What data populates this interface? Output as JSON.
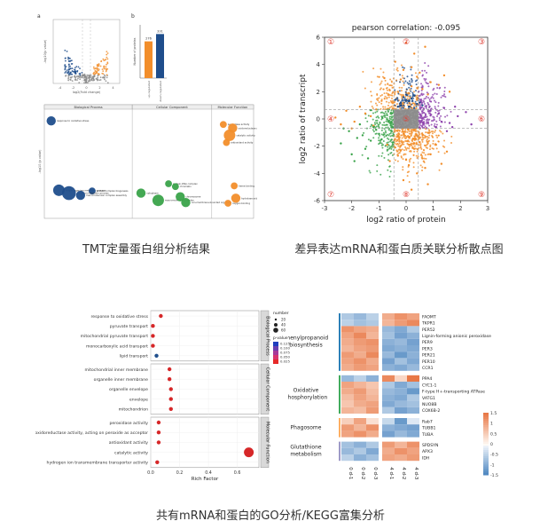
{
  "captions": {
    "tmt": "TMT定量蛋白组分析结果",
    "scatter": "差异表达mRNA和蛋白质关联分析散点图",
    "enrich": "共有mRNA和蛋白的GO分析/KEGG富集分析"
  },
  "colors": {
    "orange": "#f28e2b",
    "blue": "#1f4e8c",
    "green": "#3aa34a",
    "red": "#d62728",
    "grey": "#8c8c8c",
    "purple": "#8e44ad"
  },
  "chart_data": [
    {
      "id": "tmt-volcano",
      "type": "scatter",
      "panel_letter": "a",
      "xlabel": "log2(Fold change)",
      "ylabel": "-log10(p value)",
      "xticks": [
        "-4",
        "-2",
        "0",
        "2",
        "4"
      ],
      "xlim": [
        -5,
        5
      ],
      "ylim": [
        0,
        10
      ],
      "series": []
    },
    {
      "id": "tmt-bar",
      "type": "bar",
      "panel_letter": "b",
      "ylabel": "Number of proteins",
      "categories": [
        "up-regulated",
        "down-regulated"
      ],
      "values": [
        276,
        331
      ],
      "data_labels": [
        "276",
        "331"
      ],
      "ylim": [
        0,
        400
      ]
    },
    {
      "id": "tmt-go-bubble",
      "type": "scatter",
      "ylabel": "-log10 (p value)",
      "section_titles": [
        "Biological Process",
        "Cellular Component",
        "Molecular Function"
      ],
      "points": [
        {
          "label": "response to oxidative stress",
          "section": 0,
          "x": 0.02,
          "y": 13,
          "size": 4,
          "color": "blue"
        },
        {
          "label": "single-organism metabolic process",
          "section": 0,
          "x": 0.12,
          "y": 3.4,
          "size": 5,
          "color": "blue"
        },
        {
          "label": "protein complex biogenesis",
          "section": 0,
          "x": 0.55,
          "y": 3.3,
          "size": 3,
          "color": "blue"
        },
        {
          "label": "oxidation-reduction process",
          "section": 0,
          "x": 0.25,
          "y": 3.0,
          "size": 6,
          "color": "blue"
        },
        {
          "label": "macromolecular complex assembly",
          "section": 0,
          "x": 0.4,
          "y": 2.7,
          "size": 4,
          "color": "blue"
        },
        {
          "label": "cytoplasm",
          "section": 1,
          "x": 0.05,
          "y": 3.0,
          "size": 4,
          "color": "green"
        },
        {
          "label": "protein-DNA complex",
          "section": 1,
          "x": 0.45,
          "y": 4.3,
          "size": 3,
          "color": "green"
        },
        {
          "label": "chromatin",
          "section": 1,
          "x": 0.55,
          "y": 3.9,
          "size": 3,
          "color": "green"
        },
        {
          "label": "macromolecular complex",
          "section": 1,
          "x": 0.3,
          "y": 2.0,
          "size": 5,
          "color": "green"
        },
        {
          "label": "chromosome",
          "section": 1,
          "x": 0.62,
          "y": 2.5,
          "size": 4,
          "color": "green"
        },
        {
          "label": "non-membrane-bounded organelle",
          "section": 1,
          "x": 0.7,
          "y": 1.7,
          "size": 4,
          "color": "green"
        },
        {
          "label": "peroxidase activity",
          "section": 2,
          "x": 0.2,
          "y": 12.5,
          "size": 3,
          "color": "orange"
        },
        {
          "label": "oxidoreductase activity",
          "section": 2,
          "x": 0.5,
          "y": 12.0,
          "size": 4,
          "color": "orange"
        },
        {
          "label": "catalytic activity",
          "section": 2,
          "x": 0.4,
          "y": 11.0,
          "size": 5,
          "color": "orange"
        },
        {
          "label": "antioxidant activity",
          "section": 2,
          "x": 0.3,
          "y": 10.0,
          "size": 3,
          "color": "orange"
        },
        {
          "label": "heme binding",
          "section": 2,
          "x": 0.55,
          "y": 4.0,
          "size": 3,
          "color": "orange"
        },
        {
          "label": "hydrolase activity",
          "section": 2,
          "x": 0.6,
          "y": 2.3,
          "size": 4,
          "color": "orange"
        },
        {
          "label": "oxygen binding",
          "section": 2,
          "x": 0.35,
          "y": 1.6,
          "size": 3,
          "color": "orange"
        }
      ]
    },
    {
      "id": "mrna-protein-scatter",
      "type": "scatter",
      "title": "pearson correlation: -0.095",
      "xlabel": "log2 ratio of protein",
      "ylabel": "log2 ratio of transcript",
      "xlim": [
        -3,
        3
      ],
      "ylim": [
        -6,
        6
      ],
      "xticks": [
        -3,
        -2,
        -1,
        0,
        1,
        2,
        3
      ],
      "yticks": [
        -6,
        -4,
        -2,
        0,
        2,
        4,
        6
      ],
      "quadrants": [
        "①",
        "②",
        "③",
        "④",
        "⑤",
        "⑥",
        "⑦",
        "⑧",
        "⑨"
      ],
      "series": [
        {
          "color": "orange",
          "points": [
            [
              -0.3,
              2.0
            ],
            [
              0.2,
              2.4
            ],
            [
              0.4,
              3.1
            ],
            [
              -0.1,
              3.6
            ],
            [
              0.6,
              2.2
            ],
            [
              0.9,
              2.7
            ],
            [
              0.1,
              1.9
            ],
            [
              -0.4,
              4.2
            ],
            [
              0.3,
              4.8
            ],
            [
              0.7,
              5.3
            ],
            [
              1.2,
              2.5
            ],
            [
              -0.2,
              2.9
            ],
            [
              0.5,
              3.4
            ],
            [
              0.0,
              5.6
            ],
            [
              1.4,
              3.2
            ],
            [
              -0.6,
              2.1
            ],
            [
              0.8,
              1.8
            ],
            [
              0.2,
              3.8
            ],
            [
              1.6,
              2.0
            ],
            [
              -0.8,
              3.0
            ],
            [
              0.3,
              -1.8
            ],
            [
              -0.2,
              -2.3
            ],
            [
              0.6,
              -2.9
            ],
            [
              0.1,
              -3.4
            ],
            [
              -0.4,
              -2.1
            ],
            [
              0.9,
              -2.6
            ],
            [
              0.4,
              -4.0
            ],
            [
              -0.1,
              -4.5
            ],
            [
              0.7,
              -3.6
            ],
            [
              1.1,
              -1.9
            ],
            [
              -0.6,
              -3.1
            ],
            [
              0.2,
              -5.2
            ],
            [
              0.5,
              -1.7
            ],
            [
              1.5,
              -2.4
            ],
            [
              -0.3,
              -2.7
            ],
            [
              0.8,
              -4.8
            ],
            [
              0.0,
              -3.0
            ],
            [
              1.3,
              -3.3
            ],
            [
              -0.7,
              -1.9
            ],
            [
              0.3,
              -2.2
            ],
            [
              -1.5,
              0.4
            ],
            [
              -1.9,
              -0.2
            ],
            [
              -2.2,
              0.6
            ],
            [
              -1.2,
              -0.5
            ],
            [
              -2.6,
              0.1
            ],
            [
              -1.7,
              0.9
            ],
            [
              -1.3,
              0.2
            ],
            [
              -2.0,
              -0.7
            ],
            [
              -1.1,
              0.7
            ],
            [
              -2.4,
              -0.4
            ]
          ]
        },
        {
          "color": "blue",
          "points": [
            [
              -0.2,
              1.0
            ],
            [
              0.1,
              1.3
            ],
            [
              0.3,
              0.8
            ],
            [
              -0.1,
              1.6
            ],
            [
              0.4,
              1.1
            ],
            [
              0.0,
              1.8
            ],
            [
              -0.3,
              0.9
            ],
            [
              0.2,
              1.5
            ],
            [
              0.5,
              1.2
            ],
            [
              -0.4,
              1.4
            ],
            [
              0.1,
              0.9
            ],
            [
              0.3,
              1.7
            ],
            [
              -0.2,
              1.2
            ],
            [
              0.6,
              1.0
            ],
            [
              0.0,
              1.4
            ]
          ]
        },
        {
          "color": "green",
          "points": [
            [
              -1.2,
              -0.6
            ],
            [
              -1.8,
              -1.4
            ],
            [
              -2.1,
              -0.9
            ],
            [
              -1.5,
              -2.2
            ],
            [
              -1.0,
              -1.1
            ],
            [
              -2.4,
              -1.8
            ],
            [
              -1.7,
              -0.4
            ],
            [
              -1.3,
              -1.6
            ],
            [
              -2.0,
              -2.6
            ],
            [
              -1.1,
              -0.8
            ],
            [
              -1.6,
              -1.2
            ],
            [
              -2.3,
              -0.7
            ],
            [
              -1.4,
              -2.9
            ],
            [
              -0.9,
              -1.5
            ],
            [
              -1.9,
              -3.1
            ]
          ]
        },
        {
          "color": "purple",
          "points": [
            [
              1.2,
              0.4
            ],
            [
              1.6,
              -0.3
            ],
            [
              1.4,
              0.8
            ],
            [
              1.9,
              0.2
            ],
            [
              1.1,
              -0.6
            ],
            [
              2.2,
              0.5
            ],
            [
              1.5,
              -0.9
            ],
            [
              1.8,
              0.9
            ],
            [
              1.3,
              -0.2
            ],
            [
              2.4,
              -0.4
            ],
            [
              0.9,
              0.6
            ],
            [
              1.7,
              -0.6
            ]
          ]
        },
        {
          "color": "grey",
          "points": [
            [
              -0.4,
              0.3
            ],
            [
              -0.2,
              -0.2
            ],
            [
              0.1,
              0.4
            ],
            [
              0.3,
              -0.3
            ],
            [
              -0.1,
              0.1
            ],
            [
              0.4,
              0.2
            ],
            [
              0.2,
              -0.4
            ],
            [
              -0.3,
              -0.1
            ],
            [
              0.0,
              0.0
            ],
            [
              0.3,
              0.5
            ],
            [
              -0.4,
              -0.5
            ],
            [
              0.1,
              -0.1
            ]
          ]
        }
      ]
    },
    {
      "id": "go-dotplot",
      "type": "scatter",
      "xlabel": "Rich Factor",
      "xticks": [
        0.0,
        0.2,
        0.4,
        0.6
      ],
      "xlim": [
        0,
        0.75
      ],
      "groups": [
        "Biological Process",
        "Cellular Component",
        "Molecular Function"
      ],
      "legend": {
        "size_title": "number",
        "size_values": [
          "20",
          "40",
          "60"
        ],
        "color_title": "p-value",
        "color_values": [
          "0.125",
          "0.100",
          "0.075",
          "0.050",
          "0.025"
        ]
      },
      "terms": [
        {
          "name": "response to oxidative stress",
          "group": 0,
          "x": 0.07,
          "color": "red"
        },
        {
          "name": "pyruvate transport",
          "group": 0,
          "x": 0.015,
          "color": "red"
        },
        {
          "name": "mitochondrial pyruvate transport",
          "group": 0,
          "x": 0.015,
          "color": "red"
        },
        {
          "name": "monocarboxylic acid transport",
          "group": 0,
          "x": 0.015,
          "color": "red"
        },
        {
          "name": "lipid transport",
          "group": 0,
          "x": 0.04,
          "color": "blue"
        },
        {
          "name": "mitochondrial inner membrane",
          "group": 1,
          "x": 0.13,
          "color": "red"
        },
        {
          "name": "organelle inner membrane",
          "group": 1,
          "x": 0.13,
          "color": "red"
        },
        {
          "name": "organelle envelope",
          "group": 1,
          "x": 0.14,
          "color": "red"
        },
        {
          "name": "envelope",
          "group": 1,
          "x": 0.14,
          "color": "red"
        },
        {
          "name": "mitochondrion",
          "group": 1,
          "x": 0.14,
          "color": "red"
        },
        {
          "name": "peroxidase activity",
          "group": 2,
          "x": 0.055,
          "color": "red"
        },
        {
          "name": "oxidoreductase activity, acting on peroxide as acceptor",
          "group": 2,
          "x": 0.055,
          "color": "red"
        },
        {
          "name": "antioxidant activity",
          "group": 2,
          "x": 0.055,
          "color": "red"
        },
        {
          "name": "catalytic activity",
          "group": 2,
          "x": 0.68,
          "color": "red"
        },
        {
          "name": "hydrogen ion transmembrane transporter activity",
          "group": 2,
          "x": 0.045,
          "color": "red"
        }
      ]
    },
    {
      "id": "kegg-heatmap",
      "type": "heatmap",
      "columns": [
        "0 d-1",
        "0 d-2",
        "0 d-3",
        "4 d-1",
        "4 d-2",
        "4 d-3"
      ],
      "colorbar_ticks": [
        "1.5",
        "1",
        "0.5",
        "0",
        "-0.5",
        "-1",
        "-1.5"
      ],
      "blocks": [
        {
          "pathway": "Phenylpropanoid biosynthesis",
          "genes": [
            "FAOMT",
            "TKPR1",
            "PER52",
            "Lignin-forming anionic peroxidase",
            "PER9",
            "PER3",
            "PER21",
            "PER10",
            "CCR1"
          ],
          "values": [
            [
              -0.6,
              -0.8,
              -0.5,
              0.9,
              1.2,
              1.0
            ],
            [
              -0.5,
              -0.7,
              -0.6,
              0.8,
              1.1,
              1.3
            ],
            [
              1.2,
              1.0,
              0.9,
              -0.8,
              -1.0,
              -0.6
            ],
            [
              1.0,
              1.3,
              0.8,
              -0.7,
              -1.1,
              -0.9
            ],
            [
              0.9,
              1.1,
              1.2,
              -0.9,
              -0.8,
              -1.1
            ],
            [
              0.8,
              1.0,
              1.1,
              -1.0,
              -0.9,
              -1.0
            ],
            [
              1.1,
              0.9,
              1.3,
              -0.8,
              -1.2,
              -0.9
            ],
            [
              1.0,
              1.2,
              0.9,
              -1.1,
              -0.7,
              -1.0
            ],
            [
              0.9,
              1.1,
              1.0,
              -0.9,
              -1.0,
              -0.8
            ]
          ]
        },
        {
          "pathway": "Oxidative phosphorylation",
          "genes": [
            "PPA4",
            "CYC1-1",
            "F-type H+-transporting ATPase",
            "VATG1",
            "NUO8B",
            "COX6B-2"
          ],
          "values": [
            [
              -0.8,
              -0.5,
              -0.9,
              1.3,
              0.4,
              1.5
            ],
            [
              1.0,
              0.8,
              0.6,
              -0.6,
              -1.0,
              -0.7
            ],
            [
              0.9,
              1.1,
              0.7,
              -0.8,
              -0.9,
              -1.2
            ],
            [
              0.7,
              1.0,
              0.8,
              -0.9,
              -1.0,
              -0.6
            ],
            [
              0.6,
              0.9,
              1.0,
              -1.0,
              -0.8,
              -0.7
            ],
            [
              0.8,
              0.7,
              1.1,
              -0.6,
              -1.1,
              -0.9
            ]
          ]
        },
        {
          "pathway": "Phagosome",
          "genes": [
            "Rab7",
            "TUBB1",
            "TUBA"
          ],
          "values": [
            [
              0.5,
              1.0,
              0.3,
              -0.4,
              -1.2,
              -0.2
            ],
            [
              1.1,
              0.8,
              1.2,
              -0.9,
              -1.0,
              -1.1
            ],
            [
              1.0,
              1.2,
              0.9,
              -1.1,
              -0.8,
              -1.0
            ]
          ]
        },
        {
          "pathway": "Glutathione metabolism",
          "genes": [
            "SPDSYN",
            "APX3",
            "IDH"
          ],
          "values": [
            [
              -0.7,
              -0.9,
              -0.6,
              1.1,
              0.8,
              1.2
            ],
            [
              -0.8,
              -0.6,
              -1.0,
              0.9,
              1.2,
              1.0
            ],
            [
              -0.5,
              -0.9,
              -0.7,
              1.0,
              0.9,
              1.1
            ]
          ]
        }
      ]
    }
  ]
}
